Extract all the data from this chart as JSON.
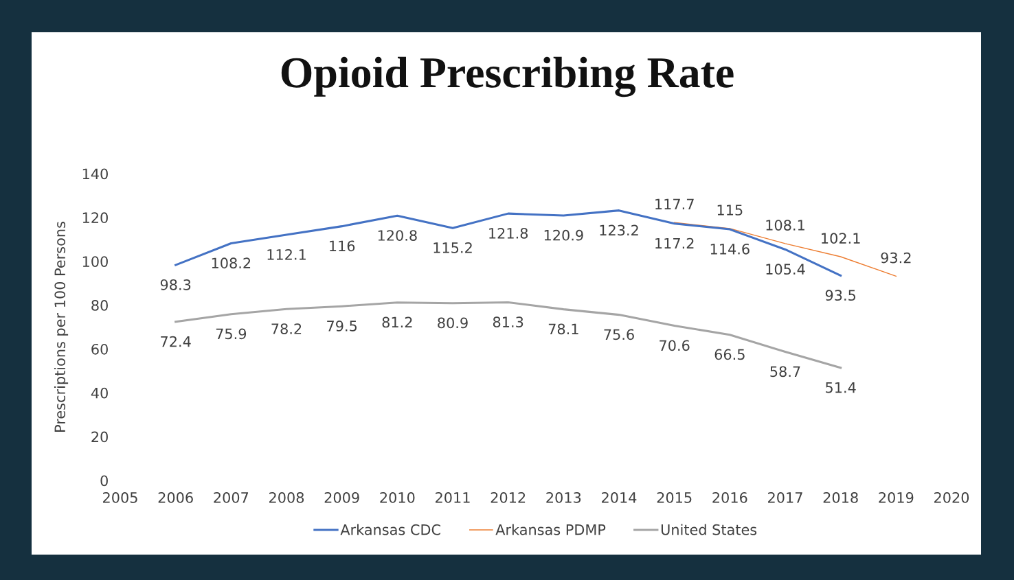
{
  "chart_data": {
    "type": "line",
    "title": "Opioid Prescribing Rate",
    "ylabel": "Prescriptions per 100 Persons",
    "series": [
      {
        "name": "Arkansas CDC",
        "color": "#4472c4",
        "x": [
          2006,
          2007,
          2008,
          2009,
          2010,
          2011,
          2012,
          2013,
          2014,
          2015,
          2016,
          2017,
          2018
        ],
        "values": [
          98.3,
          108.2,
          112.1,
          116,
          120.8,
          115.2,
          121.8,
          120.9,
          123.2,
          117.2,
          114.6,
          105.4,
          93.5
        ]
      },
      {
        "name": "Arkansas PDMP",
        "color": "#ed7d31",
        "x": [
          2015,
          2016,
          2017,
          2018,
          2019
        ],
        "values": [
          117.7,
          115,
          108.1,
          102.1,
          93.2
        ]
      },
      {
        "name": "United States",
        "color": "#a5a5a5",
        "x": [
          2006,
          2007,
          2008,
          2009,
          2010,
          2011,
          2012,
          2013,
          2014,
          2015,
          2016,
          2017,
          2018
        ],
        "values": [
          72.4,
          75.9,
          78.2,
          79.5,
          81.2,
          80.9,
          81.3,
          78.1,
          75.6,
          70.6,
          66.5,
          58.7,
          51.4
        ]
      }
    ],
    "xlim": [
      2005,
      2020
    ],
    "xticks": [
      2005,
      2006,
      2007,
      2008,
      2009,
      2010,
      2011,
      2012,
      2013,
      2014,
      2015,
      2016,
      2017,
      2018,
      2019,
      2020
    ],
    "ylim": [
      0,
      140
    ],
    "yticks": [
      0,
      20,
      40,
      60,
      80,
      100,
      120,
      140
    ],
    "data_labels": true,
    "legend": "bottom",
    "grid": false,
    "marker": "none",
    "line_style": "solid"
  }
}
